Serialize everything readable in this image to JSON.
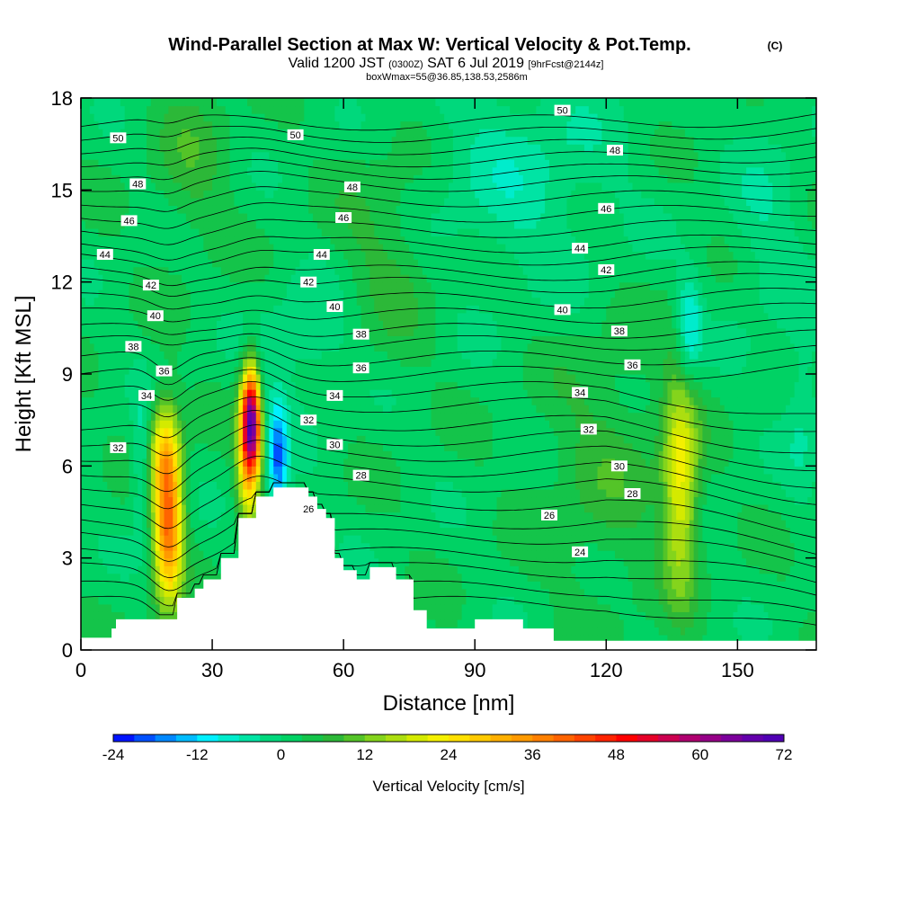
{
  "chart_data": {
    "type": "heatmap",
    "title": "Wind-Parallel Section at Max W: Vertical Velocity & Pot.Temp.",
    "title_mark": "(C)",
    "subtitle": {
      "valid": "Valid 1200 JST",
      "utc": "(0300Z)",
      "date": "SAT 6 Jul 2019",
      "fcst": "[9hrFcst@2144z]"
    },
    "note": "boxWmax=55@36.85,138.53,2586m",
    "xlabel": "Distance [nm]",
    "ylabel": "Height [Kft MSL]",
    "xlim": [
      0,
      168
    ],
    "ylim": [
      0,
      18
    ],
    "xticks": [
      0,
      30,
      60,
      90,
      120,
      150
    ],
    "yticks": [
      0,
      3,
      6,
      9,
      12,
      15,
      18
    ],
    "colorbar": {
      "label": "Vertical Velocity [cm/s]",
      "ticks": [
        -24,
        -12,
        0,
        12,
        24,
        36,
        48,
        60,
        72
      ],
      "levels": [
        -24,
        -21,
        -18,
        -15,
        -12,
        -9,
        -6,
        -3,
        0,
        3,
        6,
        9,
        12,
        15,
        18,
        21,
        24,
        27,
        30,
        33,
        36,
        39,
        42,
        45,
        48,
        51,
        54,
        57,
        60,
        63,
        66,
        69,
        72
      ],
      "colors": [
        "#0014ff",
        "#0050ff",
        "#0088ff",
        "#00bcff",
        "#00f0ff",
        "#00eccc",
        "#00e4a4",
        "#00d87c",
        "#00d264",
        "#14c44a",
        "#2cb838",
        "#54c428",
        "#84d41c",
        "#acde10",
        "#d4ea00",
        "#f4f000",
        "#ffe000",
        "#ffca00",
        "#ffb000",
        "#ff9a00",
        "#ff8000",
        "#ff6400",
        "#ff4400",
        "#ff2400",
        "#ff0000",
        "#e60028",
        "#cc0050",
        "#b00070",
        "#960088",
        "#7c009c",
        "#6400ac",
        "#5000b4"
      ]
    },
    "terrain_max_height_kft": [
      0.4,
      0.4,
      0.4,
      0.4,
      0.4,
      0.4,
      0.4,
      0.7,
      1.0,
      1.0,
      1.0,
      1.0,
      1.0,
      1.0,
      1.0,
      1.0,
      1.0,
      1.0,
      1.0,
      1.0,
      1.0,
      1.0,
      1.7,
      1.7,
      1.7,
      1.7,
      2.0,
      2.0,
      2.3,
      2.3,
      2.3,
      2.3,
      3.0,
      3.0,
      3.0,
      3.0,
      4.3,
      4.3,
      4.3,
      4.3,
      5.0,
      5.0,
      5.0,
      5.0,
      5.3,
      5.3,
      5.3,
      5.3,
      5.3,
      5.3,
      5.3,
      5.3,
      5.0,
      5.0,
      4.6,
      4.6,
      4.3,
      4.3,
      3.0,
      3.0,
      2.6,
      2.6,
      2.6,
      2.3,
      2.3,
      2.3,
      2.7,
      2.7,
      2.7,
      2.7,
      2.7,
      2.7,
      2.3,
      2.3,
      2.3,
      2.3,
      1.3,
      1.3,
      1.3,
      0.7,
      0.7,
      0.7,
      0.7,
      0.7,
      0.7,
      0.7,
      0.7,
      0.7,
      0.7,
      0.7,
      1.0,
      1.0,
      1.0,
      1.0,
      1.0,
      1.0,
      1.0,
      1.0,
      1.0,
      1.0,
      1.0,
      0.7,
      0.7,
      0.7,
      0.7,
      0.7,
      0.7,
      0.7,
      0.3,
      0.3,
      0.3,
      0.3,
      0.3,
      0.3,
      0.3,
      0.3,
      0.3,
      0.3,
      0.3,
      0.3,
      0.3,
      0.3,
      0.3,
      0.3,
      0.3,
      0.3,
      0.3,
      0.3,
      0.3,
      0.3,
      0.3,
      0.3,
      0.3,
      0.3,
      0.3,
      0.3,
      0.3,
      0.3,
      0.3,
      0.3,
      0.3,
      0.3,
      0.3,
      0.3,
      0.3,
      0.3,
      0.3,
      0.3,
      0.3,
      0.3,
      0.3,
      0.3,
      0.3,
      0.3,
      0.3,
      0.3,
      0.3,
      0.3,
      0.3,
      0.3,
      0.3,
      0.3,
      0.3,
      0.3,
      0.3,
      0.3,
      0.3,
      0.3,
      0.3,
      0.3
    ],
    "w_background_cm_s": 2,
    "w_features": [
      {
        "x": 20,
        "y": 4.0,
        "amp": 36,
        "sx": 2.3,
        "sy": 1.8
      },
      {
        "x": 19,
        "y": 6.5,
        "amp": 18,
        "sx": 2.5,
        "sy": 1.2
      },
      {
        "x": 14,
        "y": 6.0,
        "amp": -9,
        "sx": 1.5,
        "sy": 1.5
      },
      {
        "x": 39,
        "y": 7.5,
        "amp": 62,
        "sx": 1.6,
        "sy": 1.2
      },
      {
        "x": 38,
        "y": 5.8,
        "amp": 18,
        "sx": 1.8,
        "sy": 1.5
      },
      {
        "x": 45,
        "y": 6.3,
        "amp": -20,
        "sx": 1.6,
        "sy": 1.3
      },
      {
        "x": 41,
        "y": 8.2,
        "amp": -8,
        "sx": 1.2,
        "sy": 1.0
      },
      {
        "x": 137,
        "y": 5.5,
        "amp": 20,
        "sx": 2.8,
        "sy": 2.5
      },
      {
        "x": 139,
        "y": 10.5,
        "amp": -12,
        "sx": 2.0,
        "sy": 1.2
      },
      {
        "x": 100,
        "y": 15.5,
        "amp": -6,
        "sx": 16.0,
        "sy": 2.5
      },
      {
        "x": 157,
        "y": 14.0,
        "amp": -4,
        "sx": 6.0,
        "sy": 3.0
      },
      {
        "x": 70,
        "y": 13.0,
        "amp": 5,
        "sx": 8.0,
        "sy": 2.5
      },
      {
        "x": 25,
        "y": 16.0,
        "amp": 5,
        "sx": 6.0,
        "sy": 2.0
      },
      {
        "x": 165,
        "y": 8.0,
        "amp": -5,
        "sx": 3.0,
        "sy": 2.0
      },
      {
        "x": 52,
        "y": 10.0,
        "amp": -5,
        "sx": 8.0,
        "sy": 1.5
      },
      {
        "x": 120,
        "y": 6.0,
        "amp": 5,
        "sx": 10.0,
        "sy": 3.0
      }
    ],
    "isentropes": [
      {
        "theta": 50,
        "base_kft": 17.2
      },
      {
        "theta": 50,
        "base_kft": 16.8
      },
      {
        "theta": 50,
        "base_kft": 16.4
      },
      {
        "theta": 48,
        "base_kft": 16.0
      },
      {
        "theta": 48,
        "base_kft": 15.6
      },
      {
        "theta": 48,
        "base_kft": 15.2
      },
      {
        "theta": 46,
        "base_kft": 14.7
      },
      {
        "theta": 46,
        "base_kft": 14.2
      },
      {
        "theta": 46,
        "base_kft": 13.7
      },
      {
        "theta": 44,
        "base_kft": 13.2
      },
      {
        "theta": 44,
        "base_kft": 12.8
      },
      {
        "theta": 42,
        "base_kft": 12.3
      },
      {
        "theta": 42,
        "base_kft": 11.9
      },
      {
        "theta": 40,
        "base_kft": 11.4
      },
      {
        "theta": 40,
        "base_kft": 10.9
      },
      {
        "theta": 38,
        "base_kft": 10.4
      },
      {
        "theta": 38,
        "base_kft": 10.0
      },
      {
        "theta": 36,
        "base_kft": 9.5
      },
      {
        "theta": 36,
        "base_kft": 9.0
      },
      {
        "theta": 34,
        "base_kft": 8.5
      },
      {
        "theta": 34,
        "base_kft": 8.0
      },
      {
        "theta": 32,
        "base_kft": 7.4
      },
      {
        "theta": 32,
        "base_kft": 6.9
      },
      {
        "theta": 30,
        "base_kft": 6.4
      },
      {
        "theta": 30,
        "base_kft": 5.9
      },
      {
        "theta": 28,
        "base_kft": 5.4
      },
      {
        "theta": 28,
        "base_kft": 4.8
      },
      {
        "theta": 26,
        "base_kft": 4.2
      },
      {
        "theta": 26,
        "base_kft": 3.7
      },
      {
        "theta": 24,
        "base_kft": 3.1
      },
      {
        "theta": 24,
        "base_kft": 2.6
      },
      {
        "theta": 24,
        "base_kft": 2.0
      },
      {
        "theta": 24,
        "base_kft": 1.5
      }
    ],
    "isentrope_labels": [
      {
        "text": "50",
        "x": 8.5,
        "y": 16.7
      },
      {
        "text": "50",
        "x": 49,
        "y": 16.8
      },
      {
        "text": "50",
        "x": 110,
        "y": 17.6
      },
      {
        "text": "48",
        "x": 13,
        "y": 15.2
      },
      {
        "text": "48",
        "x": 62,
        "y": 15.1
      },
      {
        "text": "48",
        "x": 122,
        "y": 16.3
      },
      {
        "text": "46",
        "x": 11,
        "y": 14.0
      },
      {
        "text": "46",
        "x": 60,
        "y": 14.1
      },
      {
        "text": "46",
        "x": 120,
        "y": 14.4
      },
      {
        "text": "44",
        "x": 5.5,
        "y": 12.9
      },
      {
        "text": "44",
        "x": 55,
        "y": 12.9
      },
      {
        "text": "44",
        "x": 114,
        "y": 13.1
      },
      {
        "text": "42",
        "x": 16,
        "y": 11.9
      },
      {
        "text": "42",
        "x": 52,
        "y": 12.0
      },
      {
        "text": "42",
        "x": 120,
        "y": 12.4
      },
      {
        "text": "40",
        "x": 17,
        "y": 10.9
      },
      {
        "text": "40",
        "x": 58,
        "y": 11.2
      },
      {
        "text": "40",
        "x": 110,
        "y": 11.1
      },
      {
        "text": "38",
        "x": 12,
        "y": 9.9
      },
      {
        "text": "38",
        "x": 64,
        "y": 10.3
      },
      {
        "text": "38",
        "x": 123,
        "y": 10.4
      },
      {
        "text": "36",
        "x": 19,
        "y": 9.1
      },
      {
        "text": "36",
        "x": 64,
        "y": 9.2
      },
      {
        "text": "36",
        "x": 126,
        "y": 9.3
      },
      {
        "text": "34",
        "x": 15,
        "y": 8.3
      },
      {
        "text": "34",
        "x": 58,
        "y": 8.3
      },
      {
        "text": "34",
        "x": 114,
        "y": 8.4
      },
      {
        "text": "32",
        "x": 8.5,
        "y": 6.6
      },
      {
        "text": "32",
        "x": 52,
        "y": 7.5
      },
      {
        "text": "32",
        "x": 116,
        "y": 7.2
      },
      {
        "text": "30",
        "x": 58,
        "y": 6.7
      },
      {
        "text": "30",
        "x": 123,
        "y": 6.0
      },
      {
        "text": "28",
        "x": 64,
        "y": 5.7
      },
      {
        "text": "28",
        "x": 126,
        "y": 5.1
      },
      {
        "text": "26",
        "x": 52,
        "y": 4.6
      },
      {
        "text": "26",
        "x": 107,
        "y": 4.4
      },
      {
        "text": "24",
        "x": 114,
        "y": 3.2
      }
    ]
  }
}
